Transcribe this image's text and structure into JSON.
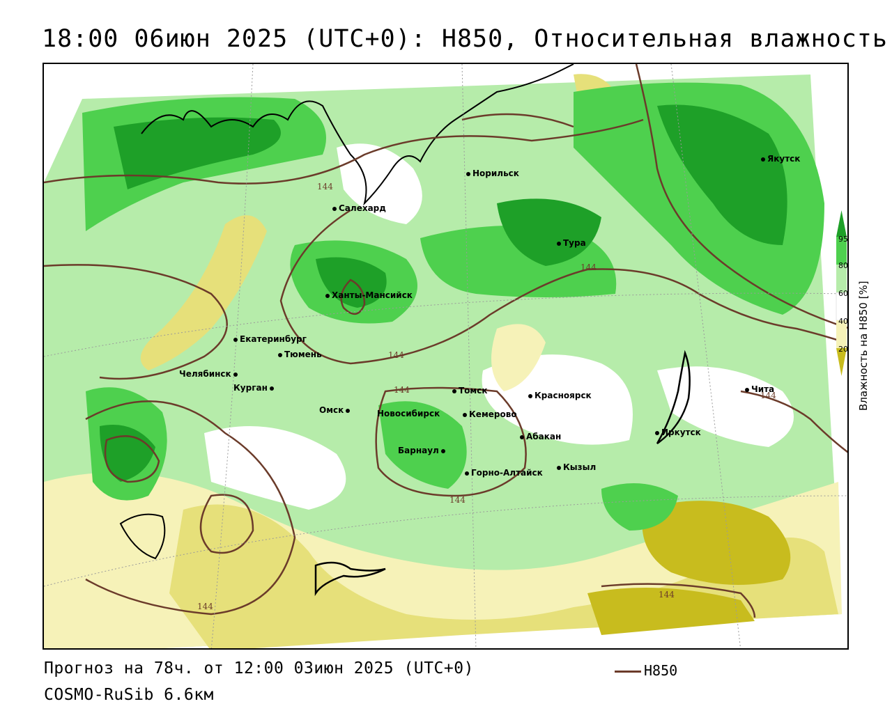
{
  "title": "18:00 06июн 2025 (UTC+0): H850, Относительная влажность",
  "footer": {
    "forecast": "Прогноз на 78ч. от 12:00 03июн 2025 (UTC+0)",
    "model": "COSMO-RuSib 6.6км"
  },
  "legend": {
    "line_label": "H850",
    "line_color": "#6b3b2a"
  },
  "colorbar": {
    "title": "Влажность на H850 [%]",
    "ticks": [
      "20",
      "40",
      "60",
      "80",
      "95"
    ],
    "colors": {
      "dark_yellow": "#c8bc1e",
      "yellow": "#e6e07a",
      "light_yellow": "#f6f2b8",
      "white": "#ffffff",
      "light_green": "#b6ecaa",
      "green": "#4ed04e",
      "dark_green": "#1ea028"
    }
  },
  "contour_label": "144",
  "cities": [
    {
      "name": "Норильск"
    },
    {
      "name": "Якутск"
    },
    {
      "name": "Салехард"
    },
    {
      "name": "Тура"
    },
    {
      "name": "Ханты-Мансийск"
    },
    {
      "name": "Екатеринбург"
    },
    {
      "name": "Тюмень"
    },
    {
      "name": "Челябинск"
    },
    {
      "name": "Курган"
    },
    {
      "name": "Омск"
    },
    {
      "name": "Томск"
    },
    {
      "name": "Новосибирск"
    },
    {
      "name": "Кемерово"
    },
    {
      "name": "Красноярск"
    },
    {
      "name": "Абакан"
    },
    {
      "name": "Барнаул"
    },
    {
      "name": "Горно-Алтайск"
    },
    {
      "name": "Кызыл"
    },
    {
      "name": "Иркутск"
    },
    {
      "name": "Чита"
    }
  ]
}
